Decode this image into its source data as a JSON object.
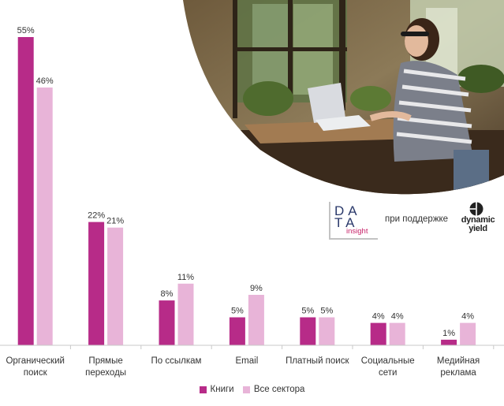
{
  "colors": {
    "books": "#b72b88",
    "all_sectors": "#e8b4d8",
    "axis": "#c9c9c9",
    "text": "#333333"
  },
  "photo": {
    "icon": "woman-working-on-laptop-photo"
  },
  "logos": {
    "data_insight_line1": "DA",
    "data_insight_line2": "TA",
    "data_insight_line3": "insight",
    "support_text": "при поддержке",
    "dynamic_yield_line1": "dynamic",
    "dynamic_yield_line2": "yield"
  },
  "legend": {
    "books": "Книги",
    "all_sectors": "Все сектора"
  },
  "chart_data": {
    "type": "bar",
    "categories": [
      [
        "Органический",
        "поиск"
      ],
      [
        "Прямые",
        "переходы"
      ],
      [
        "По ссылкам"
      ],
      [
        "Email"
      ],
      [
        "Платный поиск"
      ],
      [
        "Социальные",
        "сети"
      ],
      [
        "Медийная",
        "реклама"
      ]
    ],
    "series": [
      {
        "name": "Книги",
        "values": [
          55,
          22,
          8,
          5,
          5,
          4,
          1
        ]
      },
      {
        "name": "Все сектора",
        "values": [
          46,
          21,
          11,
          9,
          5,
          4,
          4
        ]
      }
    ],
    "value_suffix": "%",
    "ylim": [
      0,
      55
    ],
    "grid": false,
    "legend_position": "bottom"
  }
}
